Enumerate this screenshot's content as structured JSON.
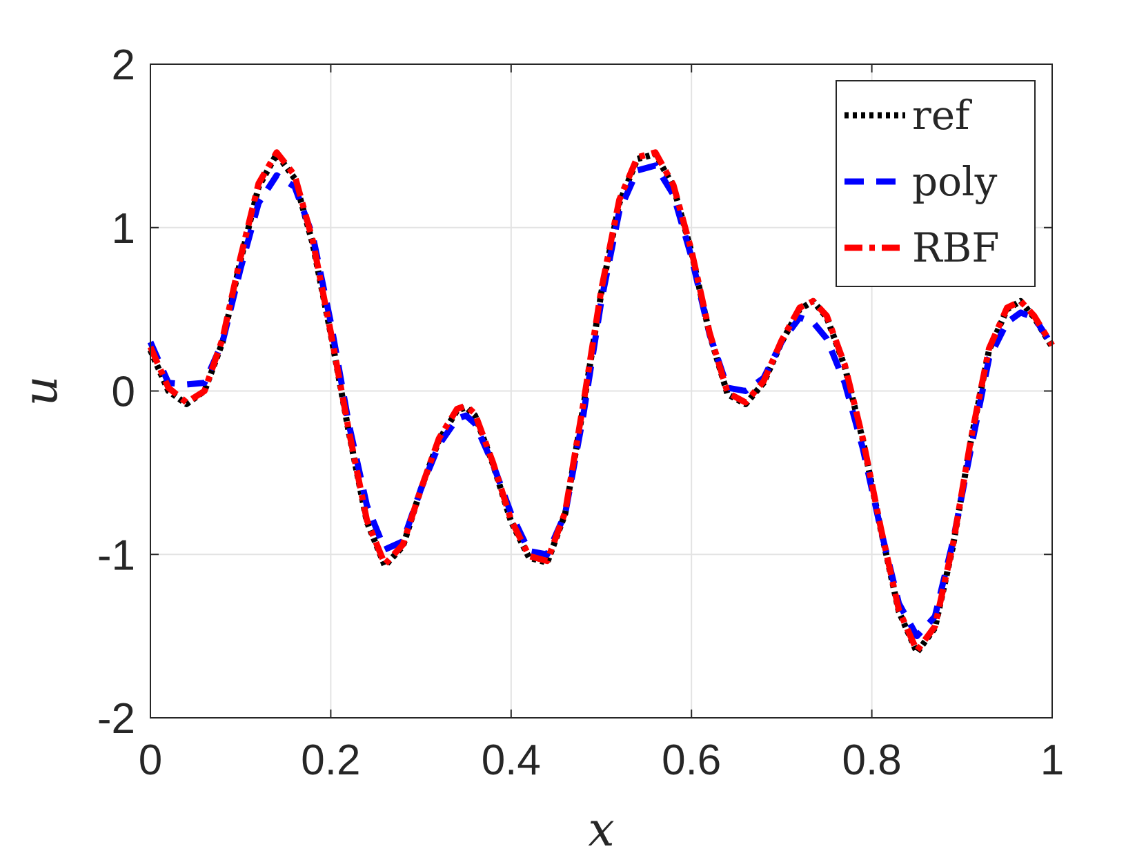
{
  "chart_data": {
    "type": "line",
    "xlabel": "x",
    "ylabel": "u",
    "xlim": [
      0,
      1
    ],
    "ylim": [
      -2,
      2
    ],
    "xticks": [
      0,
      0.2,
      0.4,
      0.6,
      0.8,
      1
    ],
    "xtick_labels": [
      "0",
      "0.2",
      "0.4",
      "0.6",
      "0.8",
      "1"
    ],
    "yticks": [
      -2,
      -1,
      0,
      1,
      2
    ],
    "ytick_labels": [
      "-2",
      "-1",
      "0",
      "1",
      "2"
    ],
    "grid": true,
    "legend_position": "top-right",
    "series": [
      {
        "name": "ref",
        "style": "dotted",
        "color": "#000000",
        "x": [
          0,
          0.02,
          0.04,
          0.06,
          0.08,
          0.1,
          0.12,
          0.14,
          0.16,
          0.18,
          0.2,
          0.22,
          0.24,
          0.26,
          0.28,
          0.3,
          0.32,
          0.34,
          0.35,
          0.36,
          0.38,
          0.4,
          0.42,
          0.44,
          0.46,
          0.48,
          0.5,
          0.52,
          0.54,
          0.56,
          0.58,
          0.6,
          0.62,
          0.64,
          0.66,
          0.68,
          0.7,
          0.72,
          0.735,
          0.75,
          0.77,
          0.79,
          0.81,
          0.83,
          0.85,
          0.87,
          0.89,
          0.91,
          0.93,
          0.95,
          0.965,
          0.98,
          1.0
        ],
        "y": [
          0.25,
          0.0,
          -0.08,
          0.0,
          0.3,
          0.8,
          1.25,
          1.45,
          1.3,
          0.9,
          0.35,
          -0.25,
          -0.8,
          -1.07,
          -0.95,
          -0.6,
          -0.3,
          -0.12,
          -0.1,
          -0.15,
          -0.45,
          -0.8,
          -1.02,
          -1.05,
          -0.75,
          -0.1,
          0.6,
          1.15,
          1.42,
          1.45,
          1.25,
          0.85,
          0.35,
          -0.02,
          -0.08,
          0.05,
          0.3,
          0.5,
          0.55,
          0.45,
          0.15,
          -0.3,
          -0.85,
          -1.35,
          -1.6,
          -1.45,
          -0.95,
          -0.3,
          0.25,
          0.5,
          0.55,
          0.45,
          0.27
        ]
      },
      {
        "name": "poly",
        "style": "dashed",
        "color": "#0000ff",
        "x": [
          0,
          0.02,
          0.04,
          0.06,
          0.08,
          0.1,
          0.12,
          0.14,
          0.16,
          0.18,
          0.2,
          0.22,
          0.24,
          0.26,
          0.28,
          0.3,
          0.32,
          0.34,
          0.35,
          0.36,
          0.38,
          0.4,
          0.42,
          0.44,
          0.46,
          0.48,
          0.5,
          0.52,
          0.54,
          0.56,
          0.58,
          0.6,
          0.62,
          0.64,
          0.66,
          0.68,
          0.7,
          0.72,
          0.735,
          0.75,
          0.77,
          0.79,
          0.81,
          0.83,
          0.85,
          0.87,
          0.89,
          0.91,
          0.93,
          0.95,
          0.965,
          0.98,
          1.0
        ],
        "y": [
          0.3,
          0.05,
          0.04,
          0.05,
          0.3,
          0.75,
          1.15,
          1.32,
          1.25,
          0.95,
          0.42,
          -0.2,
          -0.7,
          -0.97,
          -0.92,
          -0.6,
          -0.33,
          -0.17,
          -0.15,
          -0.2,
          -0.45,
          -0.75,
          -0.98,
          -1.0,
          -0.75,
          -0.15,
          0.55,
          1.1,
          1.35,
          1.38,
          1.2,
          0.82,
          0.35,
          0.02,
          0.0,
          0.08,
          0.3,
          0.45,
          0.42,
          0.32,
          0.05,
          -0.35,
          -0.85,
          -1.3,
          -1.5,
          -1.38,
          -0.92,
          -0.35,
          0.2,
          0.42,
          0.48,
          0.45,
          0.28
        ]
      },
      {
        "name": "RBF",
        "style": "dashdot",
        "color": "#ff0000",
        "x": [
          0,
          0.02,
          0.04,
          0.06,
          0.08,
          0.1,
          0.12,
          0.14,
          0.16,
          0.18,
          0.2,
          0.22,
          0.24,
          0.26,
          0.28,
          0.3,
          0.32,
          0.34,
          0.35,
          0.36,
          0.38,
          0.4,
          0.42,
          0.44,
          0.46,
          0.48,
          0.5,
          0.52,
          0.54,
          0.56,
          0.58,
          0.6,
          0.62,
          0.64,
          0.66,
          0.68,
          0.7,
          0.72,
          0.735,
          0.75,
          0.77,
          0.79,
          0.81,
          0.83,
          0.85,
          0.87,
          0.89,
          0.91,
          0.93,
          0.95,
          0.965,
          0.98,
          1.0
        ],
        "y": [
          0.27,
          0.02,
          -0.07,
          0.0,
          0.32,
          0.82,
          1.27,
          1.46,
          1.32,
          0.92,
          0.36,
          -0.24,
          -0.79,
          -1.06,
          -0.94,
          -0.6,
          -0.29,
          -0.11,
          -0.09,
          -0.14,
          -0.44,
          -0.79,
          -1.01,
          -1.04,
          -0.74,
          -0.08,
          0.62,
          1.17,
          1.43,
          1.46,
          1.26,
          0.86,
          0.36,
          -0.01,
          -0.07,
          0.06,
          0.31,
          0.51,
          0.55,
          0.46,
          0.16,
          -0.29,
          -0.84,
          -1.34,
          -1.59,
          -1.44,
          -0.94,
          -0.29,
          0.26,
          0.51,
          0.55,
          0.46,
          0.28
        ]
      }
    ]
  }
}
